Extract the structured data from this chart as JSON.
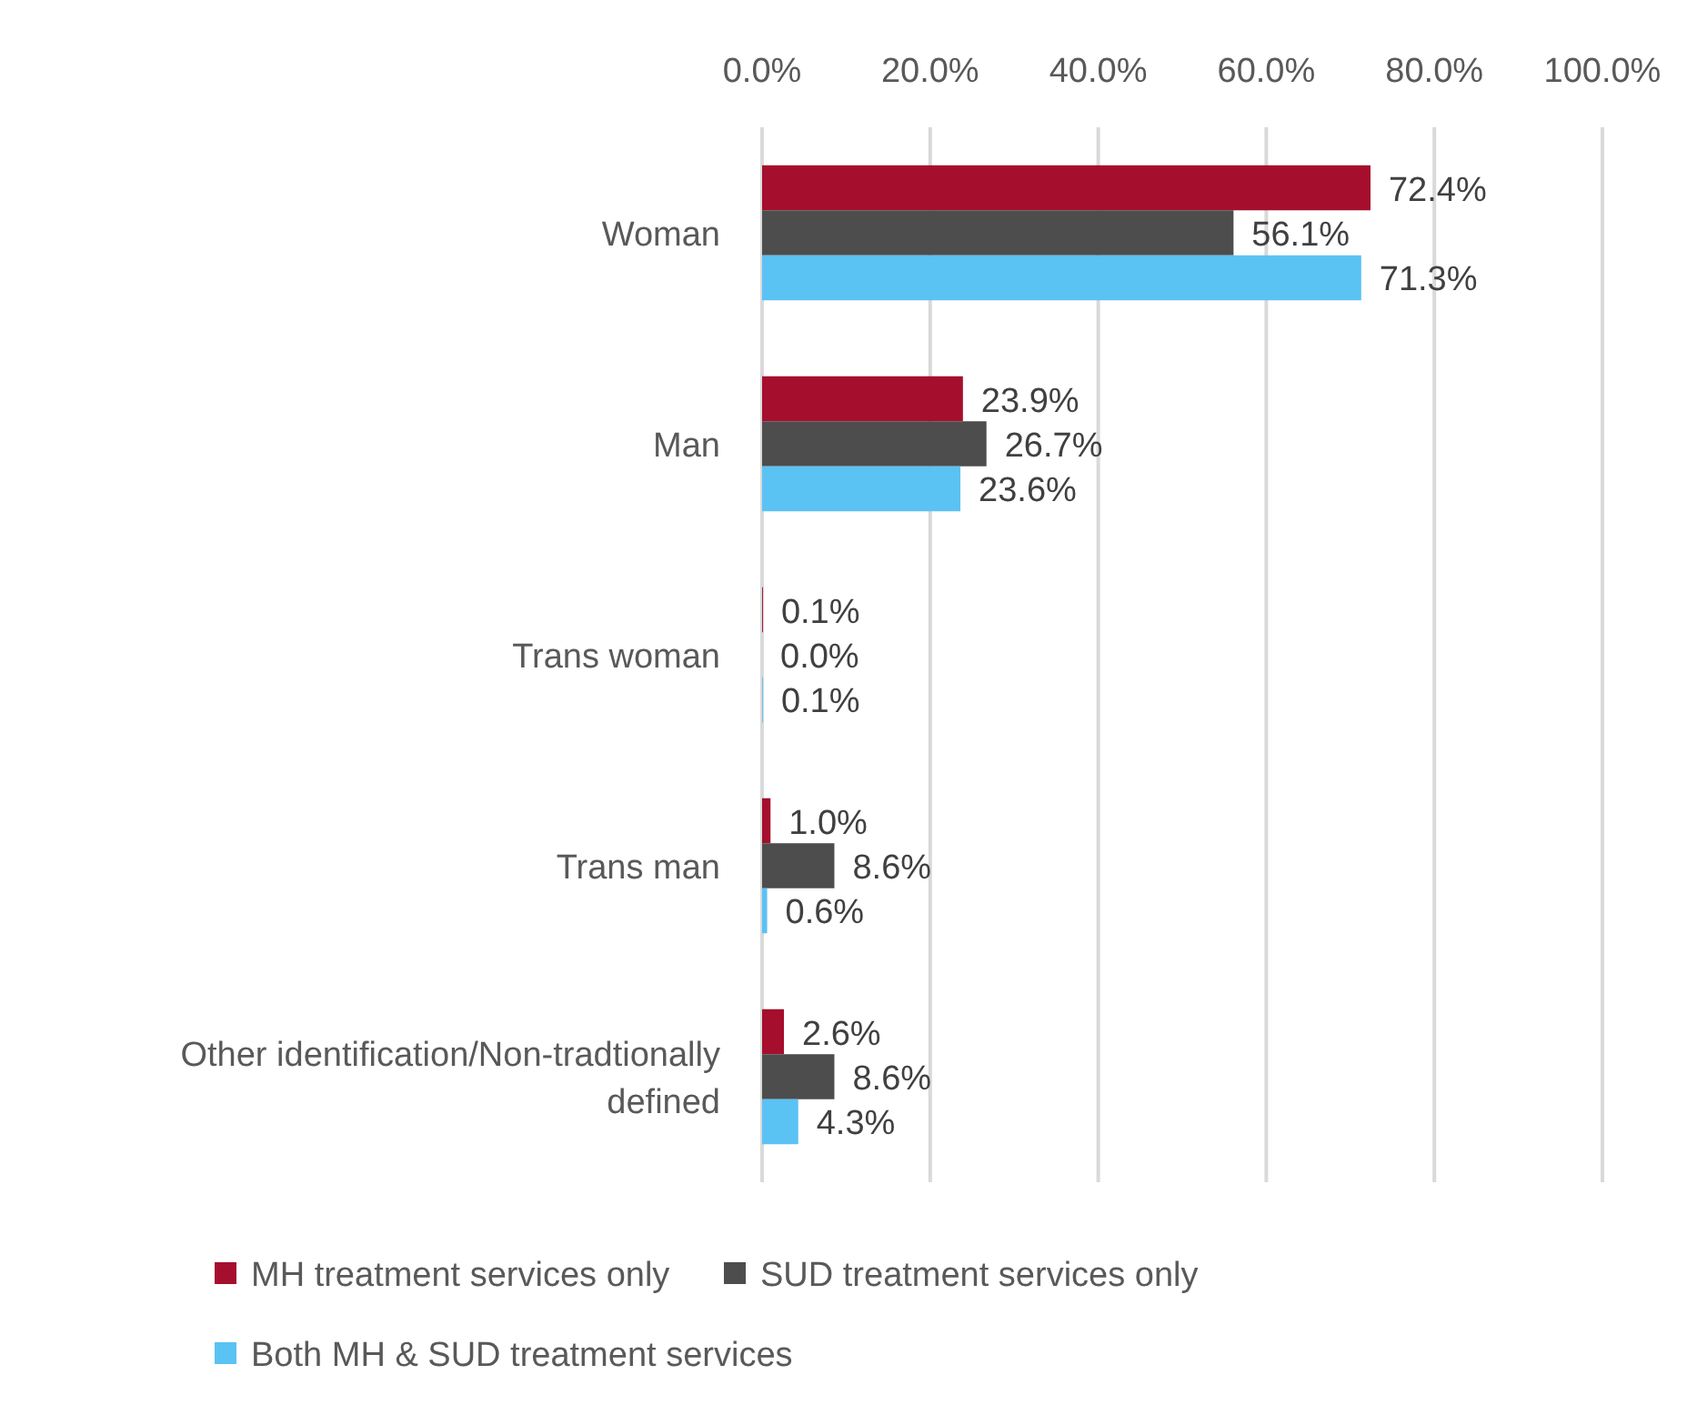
{
  "chart_data": {
    "type": "bar",
    "orientation": "horizontal",
    "categories": [
      "Woman",
      "Man",
      "Trans woman",
      "Trans man",
      "Other identification/Non-tradtionally defined"
    ],
    "series": [
      {
        "name": "MH treatment services only",
        "color": "#a50f2d",
        "values": [
          72.4,
          23.9,
          0.1,
          1.0,
          2.6
        ],
        "value_labels": [
          "72.4%",
          "23.9%",
          "0.1%",
          "1.0%",
          "2.6%"
        ]
      },
      {
        "name": "SUD treatment services only",
        "color": "#4d4d4d",
        "values": [
          56.1,
          26.7,
          0.0,
          8.6,
          8.6
        ],
        "value_labels": [
          "56.1%",
          "26.7%",
          "0.0%",
          "8.6%",
          "8.6%"
        ]
      },
      {
        "name": "Both MH & SUD treatment services",
        "color": "#5bc2f4",
        "values": [
          71.3,
          23.6,
          0.1,
          0.6,
          4.3
        ],
        "value_labels": [
          "71.3%",
          "23.6%",
          "0.1%",
          "0.6%",
          "4.3%"
        ]
      }
    ],
    "xlim": [
      0,
      100
    ],
    "xticks": [
      {
        "value": 0,
        "label": "0.0%"
      },
      {
        "value": 20,
        "label": "20.0%"
      },
      {
        "value": 40,
        "label": "40.0%"
      },
      {
        "value": 60,
        "label": "60.0%"
      },
      {
        "value": 80,
        "label": "80.0%"
      },
      {
        "value": 100,
        "label": "100.0%"
      }
    ],
    "grid": "x",
    "legend": "bottom"
  }
}
